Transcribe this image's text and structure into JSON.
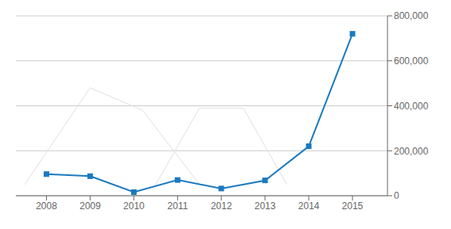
{
  "chart_data": {
    "type": "line",
    "x": [
      2008,
      2009,
      2010,
      2011,
      2012,
      2013,
      2014,
      2015
    ],
    "xlim": [
      2007.3,
      2015.8
    ],
    "xticks": [
      2008,
      2009,
      2010,
      2011,
      2012,
      2013,
      2014,
      2015
    ],
    "ylim": [
      0,
      800000
    ],
    "yticks": [
      0,
      {
        "value": 200000,
        "label": "200,000"
      },
      {
        "value": 400000,
        "label": "400,000"
      },
      {
        "value": 600000,
        "label": "600,000"
      },
      {
        "value": 800000,
        "label": "800,000"
      }
    ],
    "grid": "y",
    "series": [
      {
        "x": [
          2007.5,
          2009.0,
          2010.2,
          2011.5
        ],
        "values": [
          50000,
          480000,
          380000,
          50000
        ],
        "color": "#e0e0e0"
      },
      {
        "x": [
          2010.5,
          2011.5,
          2012.5,
          2013.5
        ],
        "values": [
          50000,
          390000,
          390000,
          50000
        ],
        "color": "#e0e0e0"
      },
      {
        "values": [
          96000,
          87000,
          16000,
          70000,
          32000,
          68000,
          220000,
          720000
        ],
        "color": "#1a7abf",
        "marker": "square"
      }
    ]
  }
}
